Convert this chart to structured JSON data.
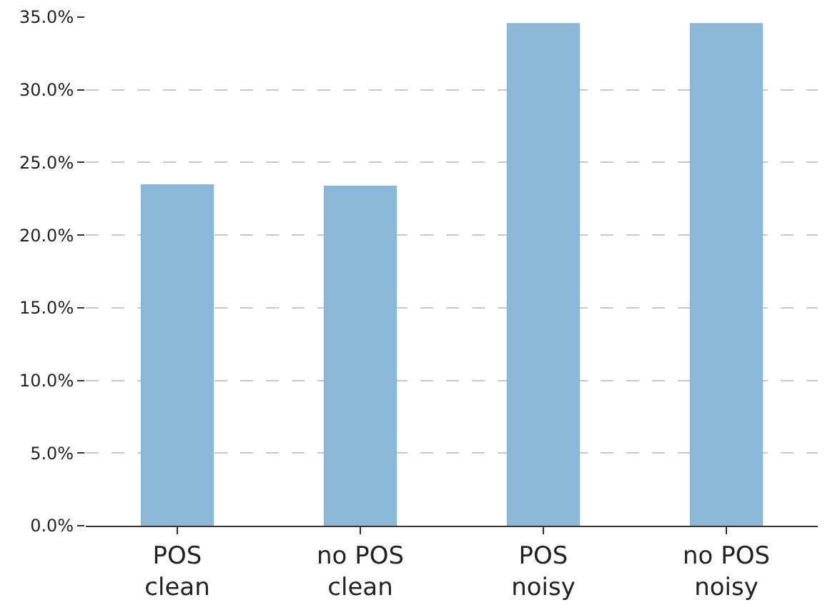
{
  "chart_data": {
    "type": "bar",
    "categories": [
      "POS\nclean",
      "no POS\nclean",
      "POS\nnoisy",
      "no POS\nnoisy"
    ],
    "values": [
      23.5,
      23.4,
      34.6,
      34.6
    ],
    "color": "#8cb8d8",
    "ylim": [
      0,
      35
    ],
    "yticks": [
      {
        "value": 0,
        "label": "0.0%"
      },
      {
        "value": 5,
        "label": "5.0%"
      },
      {
        "value": 10,
        "label": "10.0%"
      },
      {
        "value": 15,
        "label": "15.0%"
      },
      {
        "value": 20,
        "label": "20.0%"
      },
      {
        "value": 25,
        "label": "25.0%"
      },
      {
        "value": 30,
        "label": "30.0%"
      },
      {
        "value": 35,
        "label": "35.0%"
      }
    ],
    "grid": "y"
  }
}
